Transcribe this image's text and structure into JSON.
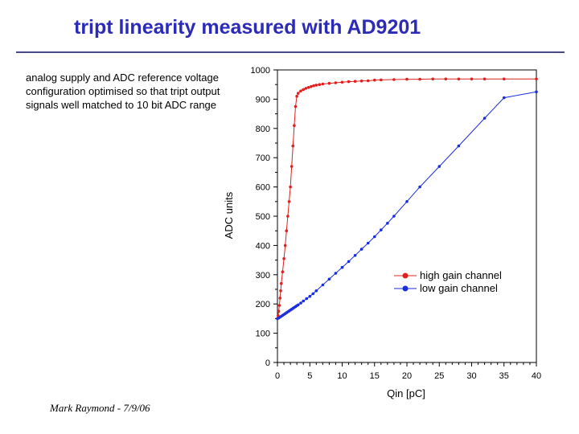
{
  "slide": {
    "title": "tript linearity measured with AD9201",
    "description": "analog supply and ADC reference voltage configuration optimised so that tript output signals well matched to 10 bit ADC range",
    "footer": "Mark Raymond - 7/9/06"
  },
  "chart_data": {
    "type": "line",
    "title": "",
    "xlabel": "Qin [pC]",
    "ylabel": "ADC units",
    "xlim": [
      0,
      40
    ],
    "ylim": [
      0,
      1000
    ],
    "xticks": [
      0,
      5,
      10,
      15,
      20,
      25,
      30,
      35,
      40
    ],
    "yticks": [
      0,
      100,
      200,
      300,
      400,
      500,
      600,
      700,
      800,
      900,
      1000
    ],
    "grid": false,
    "legend_position": "center-right",
    "series": [
      {
        "name": "high gain channel",
        "color": "#e02020",
        "x": [
          0,
          0.1,
          0.2,
          0.3,
          0.4,
          0.5,
          0.6,
          0.8,
          1.0,
          1.2,
          1.4,
          1.6,
          1.8,
          2.0,
          2.2,
          2.4,
          2.6,
          2.8,
          3.0,
          3.2,
          3.6,
          4.0,
          4.4,
          4.8,
          5.2,
          5.6,
          6.0,
          6.5,
          7.0,
          8.0,
          9.0,
          10.0,
          11.0,
          12.0,
          13.0,
          14.0,
          15.0,
          16.0,
          18.0,
          20.0,
          22.0,
          24.0,
          26.0,
          28.0,
          30.0,
          32.0,
          35.0,
          40.0
        ],
        "y": [
          150,
          160,
          175,
          195,
          220,
          245,
          270,
          310,
          355,
          400,
          450,
          500,
          550,
          600,
          670,
          740,
          810,
          875,
          910,
          920,
          928,
          933,
          937,
          940,
          943,
          946,
          948,
          950,
          952,
          954,
          956,
          958,
          960,
          961,
          962,
          963,
          965,
          966,
          967,
          968,
          968,
          969,
          969,
          969,
          969,
          969,
          969,
          969
        ]
      },
      {
        "name": "low gain channel",
        "color": "#1a2ee0",
        "x": [
          0,
          0.2,
          0.4,
          0.6,
          0.8,
          1.0,
          1.2,
          1.4,
          1.6,
          1.8,
          2.0,
          2.2,
          2.4,
          2.6,
          2.8,
          3.0,
          3.2,
          3.6,
          4.0,
          4.5,
          5.0,
          5.5,
          6.0,
          7.0,
          8.0,
          9.0,
          10.0,
          11.0,
          12.0,
          13.0,
          14.0,
          15.0,
          16.0,
          17.0,
          18.0,
          20.0,
          22.0,
          25.0,
          28.0,
          32.0,
          35.0,
          40.0
        ],
        "y": [
          150,
          152,
          155,
          158,
          161,
          164,
          167,
          170,
          173,
          176,
          179,
          182,
          185,
          188,
          191,
          194,
          197,
          203,
          210,
          218,
          226,
          235,
          245,
          265,
          285,
          305,
          325,
          345,
          366,
          387,
          408,
          430,
          453,
          476,
          500,
          550,
          600,
          670,
          740,
          835,
          905,
          925
        ]
      }
    ]
  }
}
